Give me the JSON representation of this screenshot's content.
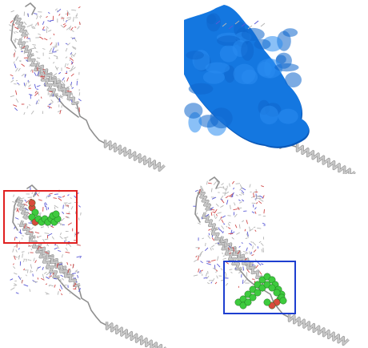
{
  "figure": {
    "panels": [
      {
        "id": "p1",
        "representation": "cartoon-with-sticks"
      },
      {
        "id": "p2",
        "representation": "surface-with-cartoon-tail"
      },
      {
        "id": "p3",
        "representation": "cartoon-with-ligand-spheres"
      },
      {
        "id": "p4",
        "representation": "cartoon-with-ligand-spheres"
      }
    ],
    "colors": {
      "cartoon": "#c8c8c8",
      "cartoon_edge": "#8f8f8f",
      "stick_carbon": "#b5b5b5",
      "stick_nitrogen": "#5a5ad6",
      "stick_oxygen": "#d24a4a",
      "surface": "#1477e0",
      "surface_dark": "#0a58b8",
      "ligand_carbon": "#3ecb3e",
      "ligand_oxygen": "#d84a3c",
      "box_panel3": "#e02020",
      "box_panel4": "#1e3fd0"
    }
  }
}
